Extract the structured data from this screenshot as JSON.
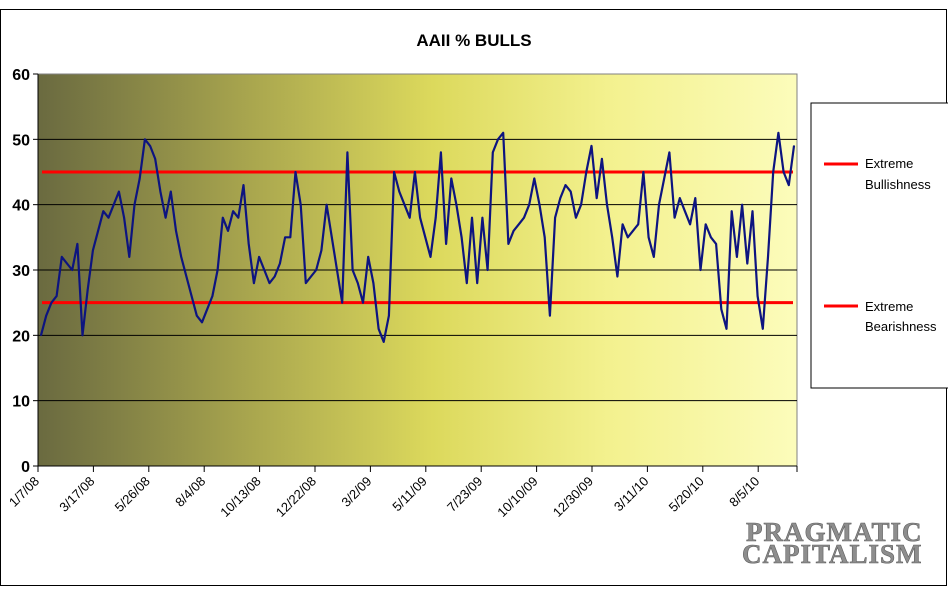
{
  "chart_data": {
    "type": "line",
    "title": "AAII % BULLS",
    "xlabel": "",
    "ylabel": "",
    "ylim": [
      0,
      60
    ],
    "y_ticks": [
      "0",
      "10",
      "20",
      "30",
      "40",
      "50",
      "60"
    ],
    "x_tick_labels": [
      "1/7/08",
      "3/17/08",
      "5/26/08",
      "8/4/08",
      "10/13/08",
      "12/22/08",
      "3/2/09",
      "5/11/09",
      "7/23/09",
      "10/10/09",
      "12/30/09",
      "3/11/10",
      "5/20/10",
      "8/5/10"
    ],
    "grid": true,
    "legend_position": "right",
    "series": [
      {
        "name": "AAII % Bulls",
        "color": "#0d1480",
        "values": [
          20,
          23,
          25,
          26,
          32,
          31,
          30,
          34,
          20,
          27,
          33,
          36,
          39,
          38,
          40,
          42,
          38,
          32,
          40,
          44,
          50,
          49,
          47,
          42,
          38,
          42,
          36,
          32,
          29,
          26,
          23,
          22,
          24,
          26,
          30,
          38,
          36,
          39,
          38,
          43,
          34,
          28,
          32,
          30,
          28,
          29,
          31,
          35,
          35,
          45,
          40,
          28,
          29,
          30,
          33,
          40,
          35,
          30,
          25,
          48,
          30,
          28,
          25,
          32,
          28,
          21,
          19,
          23,
          45,
          42,
          40,
          38,
          45,
          38,
          35,
          32,
          38,
          48,
          34,
          44,
          40,
          35,
          28,
          38,
          28,
          38,
          30,
          48,
          50,
          51,
          34,
          36,
          37,
          38,
          40,
          44,
          40,
          35,
          23,
          38,
          41,
          43,
          42,
          38,
          40,
          45,
          49,
          41,
          47,
          40,
          35,
          29,
          37,
          35,
          36,
          37,
          45,
          35,
          32,
          40,
          44,
          48,
          38,
          41,
          39,
          37,
          41,
          30,
          37,
          35,
          34,
          24,
          21,
          39,
          32,
          40,
          31,
          39,
          26,
          21,
          32,
          45,
          51,
          45,
          43,
          49
        ]
      }
    ],
    "reference_lines": [
      {
        "name": "Extreme Bullishness",
        "y": 45,
        "color": "#ff0000"
      },
      {
        "name": "Extreme Bearishness",
        "y": 25,
        "color": "#ff0000"
      }
    ]
  },
  "legend": {
    "bull_line1": "Extreme",
    "bull_line2": "Bullishness",
    "bear_line1": "Extreme",
    "bear_line2": "Bearishness"
  },
  "watermark": {
    "line1": "PRAGMATIC",
    "line2": "CAPITALISM"
  }
}
